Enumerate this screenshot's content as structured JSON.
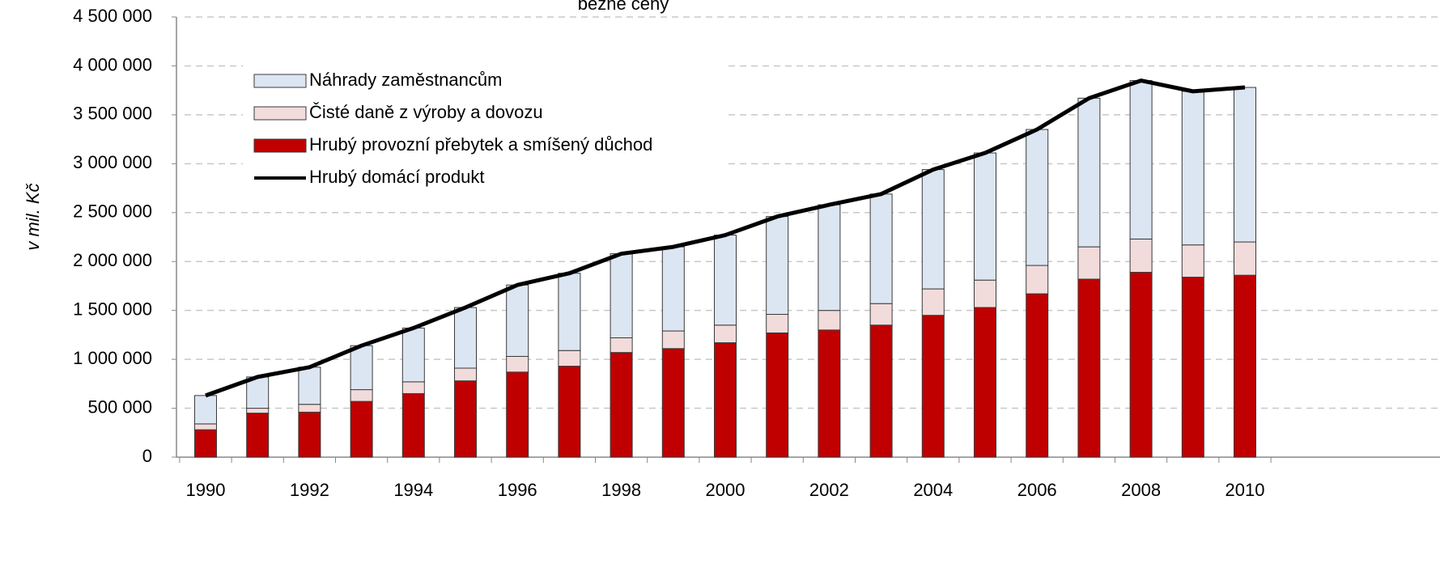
{
  "chart_data": {
    "type": "stacked-bar-line",
    "title": "běžné ceny",
    "y_label": "v mil. Kč",
    "categories": [
      "1990",
      null,
      "1992",
      null,
      "1994",
      null,
      "1996",
      null,
      "1998",
      null,
      "2000",
      null,
      "2002",
      null,
      "2004",
      null,
      "2006",
      null,
      "2008",
      null,
      "2010"
    ],
    "series": [
      {
        "name": "Náhrady zaměstnancům",
        "kind": "bar",
        "color": "#dce6f2",
        "values": [
          290000,
          320000,
          380000,
          450000,
          550000,
          620000,
          730000,
          790000,
          860000,
          860000,
          920000,
          1000000,
          1080000,
          1120000,
          1220000,
          1300000,
          1390000,
          1520000,
          1620000,
          1570000,
          1580000
        ]
      },
      {
        "name": "Čisté daně z výroby a dovozu",
        "kind": "bar",
        "color": "#f2dcdb",
        "values": [
          60000,
          50000,
          80000,
          120000,
          120000,
          130000,
          160000,
          160000,
          150000,
          180000,
          180000,
          190000,
          200000,
          220000,
          270000,
          280000,
          290000,
          330000,
          340000,
          330000,
          340000
        ]
      },
      {
        "name": "Hrubý provozní přebytek a smíšený důchod",
        "kind": "bar",
        "color": "#c00000",
        "values": [
          280000,
          450000,
          460000,
          570000,
          650000,
          780000,
          870000,
          930000,
          1070000,
          1110000,
          1170000,
          1270000,
          1300000,
          1350000,
          1450000,
          1530000,
          1670000,
          1820000,
          1890000,
          1840000,
          1860000
        ]
      },
      {
        "name": "Hrubý domácí produkt",
        "kind": "line",
        "color": "#000000",
        "values": [
          630000,
          820000,
          920000,
          1140000,
          1320000,
          1530000,
          1760000,
          1880000,
          2080000,
          2150000,
          2270000,
          2460000,
          2580000,
          2690000,
          2940000,
          3110000,
          3350000,
          3670000,
          3850000,
          3740000,
          3780000
        ]
      }
    ],
    "ylim": [
      0,
      4500000
    ],
    "yticks": [
      0,
      {
        "value": 500000,
        "label": "500 000"
      },
      {
        "value": 1000000,
        "label": "1 000 000"
      },
      {
        "value": 1500000,
        "label": "1 500 000"
      },
      {
        "value": 2000000,
        "label": "2 000 000"
      },
      {
        "value": 2500000,
        "label": "2 500 000"
      },
      {
        "value": 3000000,
        "label": "3 000 000"
      },
      {
        "value": 3500000,
        "label": "3 500 000"
      },
      {
        "value": 4000000,
        "label": "4 000 000"
      },
      {
        "value": 4500000,
        "label": "4 500 000"
      }
    ],
    "grid": true,
    "legend": "top-left"
  }
}
